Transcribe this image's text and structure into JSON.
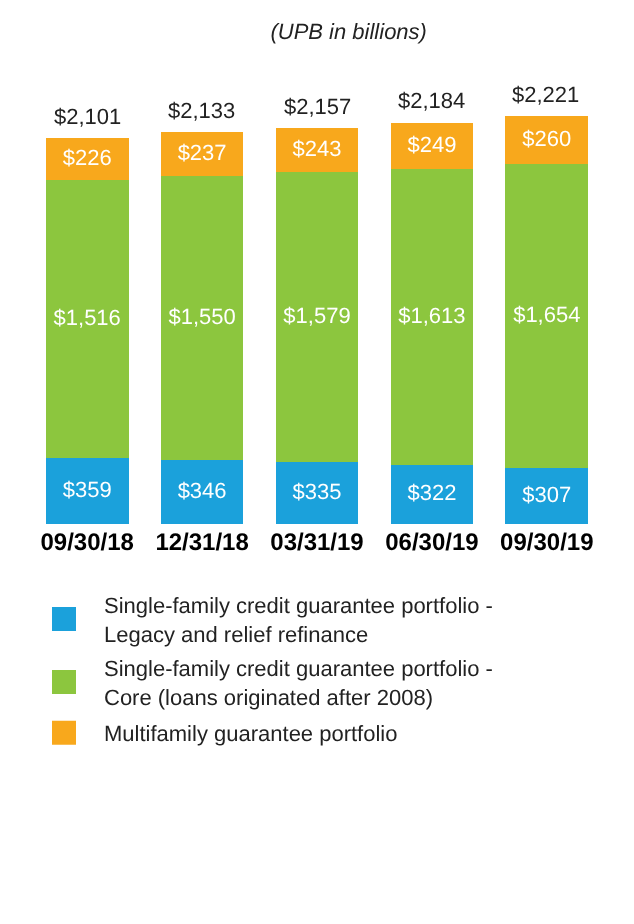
{
  "chart_data": {
    "type": "bar",
    "subtitle": "(UPB in billions)",
    "stacked": true,
    "categories": [
      "09/30/18",
      "12/31/18",
      "03/31/19",
      "06/30/19",
      "09/30/19"
    ],
    "series": [
      {
        "name": "Single-family credit guarantee portfolio - Legacy and relief refinance",
        "color": "#1ba1db",
        "values": [
          359,
          346,
          335,
          322,
          307
        ],
        "value_labels": [
          "$359",
          "$346",
          "$335",
          "$322",
          "$307"
        ]
      },
      {
        "name": "Single-family credit guarantee portfolio - Core (loans originated after 2008)",
        "color": "#8cc63e",
        "values": [
          1516,
          1550,
          1579,
          1613,
          1654
        ],
        "value_labels": [
          "$1,516",
          "$1,550",
          "$1,579",
          "$1,613",
          "$1,654"
        ]
      },
      {
        "name": "Multifamily guarantee portfolio",
        "color": "#f8a81c",
        "values": [
          226,
          237,
          243,
          249,
          260
        ],
        "value_labels": [
          "$226",
          "$237",
          "$243",
          "$249",
          "$260"
        ]
      }
    ],
    "totals": [
      "$2,101",
      "$2,133",
      "$2,157",
      "$2,184",
      "$2,221"
    ],
    "legend": "bottom",
    "tick_labels": "x"
  }
}
